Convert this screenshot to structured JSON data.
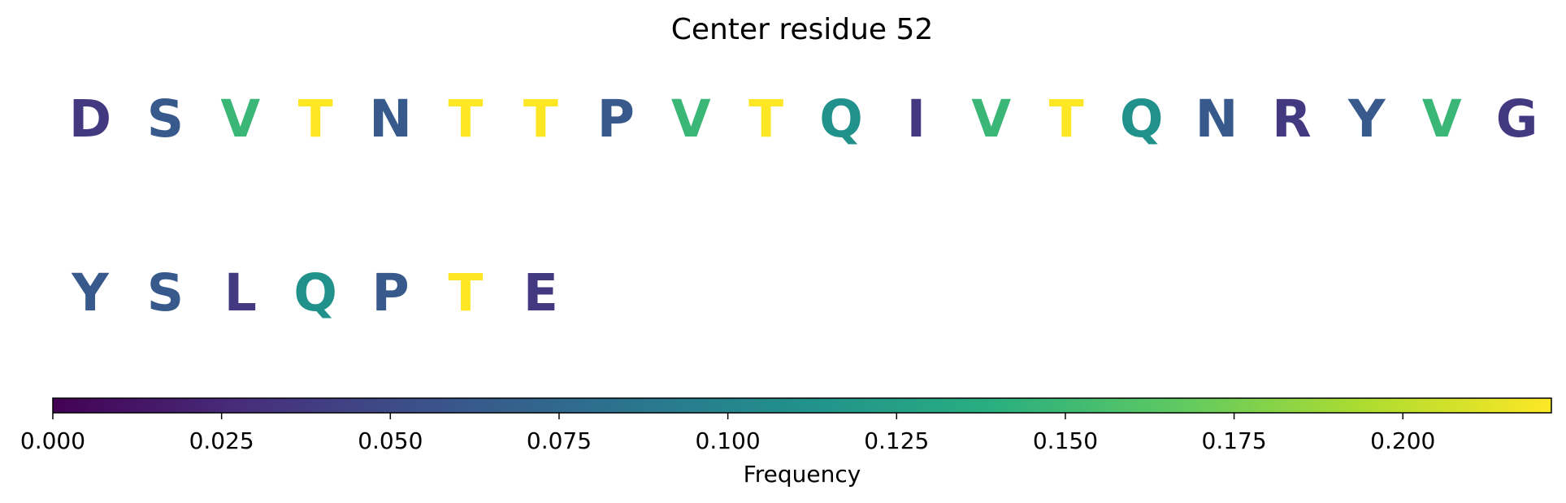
{
  "chart_data": {
    "type": "heatmap",
    "title": "Center residue 52",
    "colormap": "viridis",
    "colorbar": {
      "label": "Frequency",
      "range": [
        0.0,
        0.222
      ],
      "ticks": [
        0.0,
        0.025,
        0.05,
        0.075,
        0.1,
        0.125,
        0.15,
        0.175,
        0.2
      ],
      "tick_labels": [
        "0.000",
        "0.025",
        "0.050",
        "0.075",
        "0.100",
        "0.125",
        "0.150",
        "0.175",
        "0.200"
      ],
      "orientation": "horizontal",
      "placement": "bottom"
    },
    "rows": [
      [
        {
          "residue": "D",
          "value": 0.037
        },
        {
          "residue": "S",
          "value": 0.062
        },
        {
          "residue": "V",
          "value": 0.148
        },
        {
          "residue": "T",
          "value": 0.222
        },
        {
          "residue": "N",
          "value": 0.062
        },
        {
          "residue": "T",
          "value": 0.222
        },
        {
          "residue": "T",
          "value": 0.222
        },
        {
          "residue": "P",
          "value": 0.062
        },
        {
          "residue": "V",
          "value": 0.148
        },
        {
          "residue": "T",
          "value": 0.222
        },
        {
          "residue": "Q",
          "value": 0.111
        },
        {
          "residue": "I",
          "value": 0.037
        },
        {
          "residue": "V",
          "value": 0.148
        },
        {
          "residue": "T",
          "value": 0.222
        },
        {
          "residue": "Q",
          "value": 0.111
        },
        {
          "residue": "N",
          "value": 0.062
        },
        {
          "residue": "R",
          "value": 0.037
        },
        {
          "residue": "Y",
          "value": 0.062
        },
        {
          "residue": "V",
          "value": 0.148
        },
        {
          "residue": "G",
          "value": 0.037
        }
      ],
      [
        {
          "residue": "Y",
          "value": 0.062
        },
        {
          "residue": "S",
          "value": 0.062
        },
        {
          "residue": "L",
          "value": 0.037
        },
        {
          "residue": "Q",
          "value": 0.111
        },
        {
          "residue": "P",
          "value": 0.062
        },
        {
          "residue": "T",
          "value": 0.222
        },
        {
          "residue": "E",
          "value": 0.037
        }
      ]
    ]
  }
}
